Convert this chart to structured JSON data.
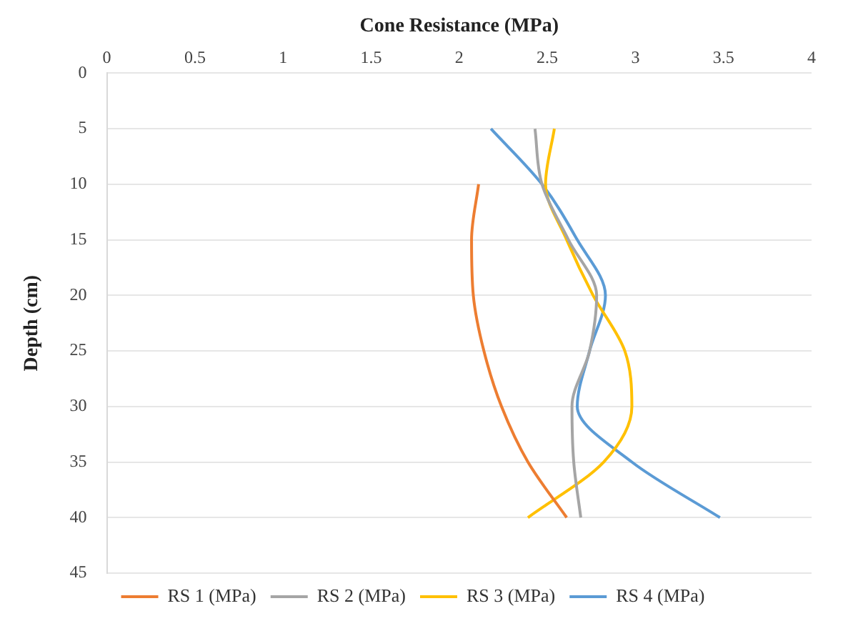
{
  "chart_data": {
    "type": "line",
    "xlabel": "Cone Resistance (MPa)",
    "ylabel": "Depth (cm)",
    "xlim": [
      0,
      4
    ],
    "xticks": [
      0,
      0.5,
      1,
      1.5,
      2,
      2.5,
      3,
      3.5,
      4
    ],
    "ylim": [
      45,
      0
    ],
    "yticks": [
      0,
      5,
      10,
      15,
      20,
      25,
      30,
      35,
      40,
      45
    ],
    "grid": "y",
    "legend": "bottom",
    "marker": "none",
    "line_style": "solid",
    "series": [
      {
        "name": "RS 1 (MPa)",
        "color": "#ed7d31",
        "x": [
          2.11,
          2.07,
          2.08,
          2.14,
          2.24,
          2.39,
          2.61
        ],
        "values": [
          10,
          15,
          20,
          25,
          30,
          35,
          40
        ]
      },
      {
        "name": "RS 2 (MPa)",
        "color": "#a5a5a5",
        "x": [
          2.43,
          2.47,
          2.62,
          2.78,
          2.74,
          2.64,
          2.65,
          2.69
        ],
        "values": [
          5,
          10,
          15,
          20,
          25,
          30,
          35,
          40
        ]
      },
      {
        "name": "RS 3 (MPa)",
        "color": "#ffc000",
        "x": [
          2.54,
          2.49,
          2.61,
          2.76,
          2.94,
          2.98,
          2.82,
          2.39
        ],
        "values": [
          5,
          10,
          15,
          20,
          25,
          30,
          35,
          40
        ]
      },
      {
        "name": "RS 4 (MPa)",
        "color": "#5b9bd5",
        "x": [
          2.18,
          2.47,
          2.67,
          2.83,
          2.74,
          2.67,
          2.98,
          3.48
        ],
        "values": [
          5,
          10,
          15,
          20,
          25,
          30,
          35,
          40
        ]
      }
    ]
  }
}
